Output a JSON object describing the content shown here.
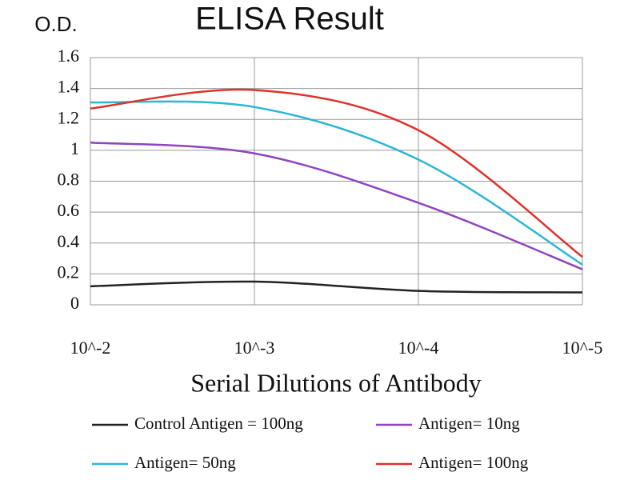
{
  "chart_data": {
    "type": "line",
    "title": "ELISA Result",
    "y_label": "O.D.",
    "x_label": "Serial Dilutions of Antibody",
    "categories": [
      "10^-2",
      "10^-3",
      "10^-4",
      "10^-5"
    ],
    "series": [
      {
        "name": "Control Antigen = 100ng",
        "color": "#222222",
        "values": [
          0.12,
          0.15,
          0.09,
          0.08
        ]
      },
      {
        "name": "Antigen= 10ng",
        "color": "#8e44c0",
        "values": [
          1.05,
          0.98,
          0.66,
          0.23
        ]
      },
      {
        "name": "Antigen= 50ng",
        "color": "#2bb6d6",
        "values": [
          1.31,
          1.28,
          0.94,
          0.26
        ]
      },
      {
        "name": "Antigen= 100ng",
        "color": "#e0302a",
        "values": [
          1.27,
          1.39,
          1.13,
          0.31
        ]
      }
    ],
    "ylim": [
      0,
      1.6
    ],
    "yticks": [
      0,
      0.2,
      0.4,
      0.6,
      0.8,
      1,
      1.2,
      1.4,
      1.6
    ],
    "grid": true
  }
}
